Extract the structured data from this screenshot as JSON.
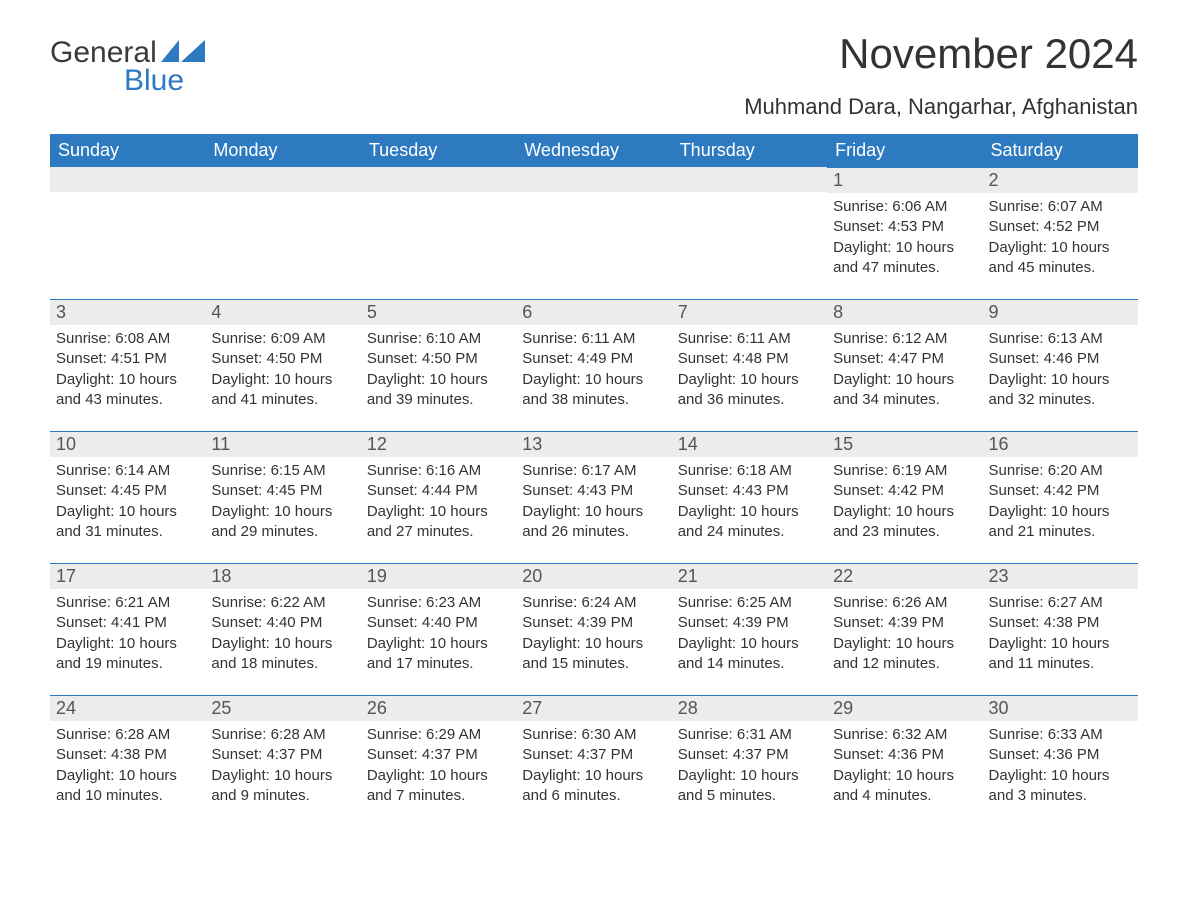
{
  "logo": {
    "word1": "General",
    "word2": "Blue"
  },
  "title": "November 2024",
  "location": "Muhmand Dara, Nangarhar, Afghanistan",
  "colors": {
    "header_bg": "#2d7ac0",
    "header_text": "#ffffff",
    "daynum_bg": "#ececec",
    "border": "#2d7ac0",
    "body_text": "#333333",
    "logo_blue": "#2d7ac0"
  },
  "day_headers": [
    "Sunday",
    "Monday",
    "Tuesday",
    "Wednesday",
    "Thursday",
    "Friday",
    "Saturday"
  ],
  "weeks": [
    [
      {
        "blank": true
      },
      {
        "blank": true
      },
      {
        "blank": true
      },
      {
        "blank": true
      },
      {
        "blank": true
      },
      {
        "num": "1",
        "sunrise": "Sunrise: 6:06 AM",
        "sunset": "Sunset: 4:53 PM",
        "daylight": "Daylight: 10 hours and 47 minutes."
      },
      {
        "num": "2",
        "sunrise": "Sunrise: 6:07 AM",
        "sunset": "Sunset: 4:52 PM",
        "daylight": "Daylight: 10 hours and 45 minutes."
      }
    ],
    [
      {
        "num": "3",
        "sunrise": "Sunrise: 6:08 AM",
        "sunset": "Sunset: 4:51 PM",
        "daylight": "Daylight: 10 hours and 43 minutes."
      },
      {
        "num": "4",
        "sunrise": "Sunrise: 6:09 AM",
        "sunset": "Sunset: 4:50 PM",
        "daylight": "Daylight: 10 hours and 41 minutes."
      },
      {
        "num": "5",
        "sunrise": "Sunrise: 6:10 AM",
        "sunset": "Sunset: 4:50 PM",
        "daylight": "Daylight: 10 hours and 39 minutes."
      },
      {
        "num": "6",
        "sunrise": "Sunrise: 6:11 AM",
        "sunset": "Sunset: 4:49 PM",
        "daylight": "Daylight: 10 hours and 38 minutes."
      },
      {
        "num": "7",
        "sunrise": "Sunrise: 6:11 AM",
        "sunset": "Sunset: 4:48 PM",
        "daylight": "Daylight: 10 hours and 36 minutes."
      },
      {
        "num": "8",
        "sunrise": "Sunrise: 6:12 AM",
        "sunset": "Sunset: 4:47 PM",
        "daylight": "Daylight: 10 hours and 34 minutes."
      },
      {
        "num": "9",
        "sunrise": "Sunrise: 6:13 AM",
        "sunset": "Sunset: 4:46 PM",
        "daylight": "Daylight: 10 hours and 32 minutes."
      }
    ],
    [
      {
        "num": "10",
        "sunrise": "Sunrise: 6:14 AM",
        "sunset": "Sunset: 4:45 PM",
        "daylight": "Daylight: 10 hours and 31 minutes."
      },
      {
        "num": "11",
        "sunrise": "Sunrise: 6:15 AM",
        "sunset": "Sunset: 4:45 PM",
        "daylight": "Daylight: 10 hours and 29 minutes."
      },
      {
        "num": "12",
        "sunrise": "Sunrise: 6:16 AM",
        "sunset": "Sunset: 4:44 PM",
        "daylight": "Daylight: 10 hours and 27 minutes."
      },
      {
        "num": "13",
        "sunrise": "Sunrise: 6:17 AM",
        "sunset": "Sunset: 4:43 PM",
        "daylight": "Daylight: 10 hours and 26 minutes."
      },
      {
        "num": "14",
        "sunrise": "Sunrise: 6:18 AM",
        "sunset": "Sunset: 4:43 PM",
        "daylight": "Daylight: 10 hours and 24 minutes."
      },
      {
        "num": "15",
        "sunrise": "Sunrise: 6:19 AM",
        "sunset": "Sunset: 4:42 PM",
        "daylight": "Daylight: 10 hours and 23 minutes."
      },
      {
        "num": "16",
        "sunrise": "Sunrise: 6:20 AM",
        "sunset": "Sunset: 4:42 PM",
        "daylight": "Daylight: 10 hours and 21 minutes."
      }
    ],
    [
      {
        "num": "17",
        "sunrise": "Sunrise: 6:21 AM",
        "sunset": "Sunset: 4:41 PM",
        "daylight": "Daylight: 10 hours and 19 minutes."
      },
      {
        "num": "18",
        "sunrise": "Sunrise: 6:22 AM",
        "sunset": "Sunset: 4:40 PM",
        "daylight": "Daylight: 10 hours and 18 minutes."
      },
      {
        "num": "19",
        "sunrise": "Sunrise: 6:23 AM",
        "sunset": "Sunset: 4:40 PM",
        "daylight": "Daylight: 10 hours and 17 minutes."
      },
      {
        "num": "20",
        "sunrise": "Sunrise: 6:24 AM",
        "sunset": "Sunset: 4:39 PM",
        "daylight": "Daylight: 10 hours and 15 minutes."
      },
      {
        "num": "21",
        "sunrise": "Sunrise: 6:25 AM",
        "sunset": "Sunset: 4:39 PM",
        "daylight": "Daylight: 10 hours and 14 minutes."
      },
      {
        "num": "22",
        "sunrise": "Sunrise: 6:26 AM",
        "sunset": "Sunset: 4:39 PM",
        "daylight": "Daylight: 10 hours and 12 minutes."
      },
      {
        "num": "23",
        "sunrise": "Sunrise: 6:27 AM",
        "sunset": "Sunset: 4:38 PM",
        "daylight": "Daylight: 10 hours and 11 minutes."
      }
    ],
    [
      {
        "num": "24",
        "sunrise": "Sunrise: 6:28 AM",
        "sunset": "Sunset: 4:38 PM",
        "daylight": "Daylight: 10 hours and 10 minutes."
      },
      {
        "num": "25",
        "sunrise": "Sunrise: 6:28 AM",
        "sunset": "Sunset: 4:37 PM",
        "daylight": "Daylight: 10 hours and 9 minutes."
      },
      {
        "num": "26",
        "sunrise": "Sunrise: 6:29 AM",
        "sunset": "Sunset: 4:37 PM",
        "daylight": "Daylight: 10 hours and 7 minutes."
      },
      {
        "num": "27",
        "sunrise": "Sunrise: 6:30 AM",
        "sunset": "Sunset: 4:37 PM",
        "daylight": "Daylight: 10 hours and 6 minutes."
      },
      {
        "num": "28",
        "sunrise": "Sunrise: 6:31 AM",
        "sunset": "Sunset: 4:37 PM",
        "daylight": "Daylight: 10 hours and 5 minutes."
      },
      {
        "num": "29",
        "sunrise": "Sunrise: 6:32 AM",
        "sunset": "Sunset: 4:36 PM",
        "daylight": "Daylight: 10 hours and 4 minutes."
      },
      {
        "num": "30",
        "sunrise": "Sunrise: 6:33 AM",
        "sunset": "Sunset: 4:36 PM",
        "daylight": "Daylight: 10 hours and 3 minutes."
      }
    ]
  ]
}
